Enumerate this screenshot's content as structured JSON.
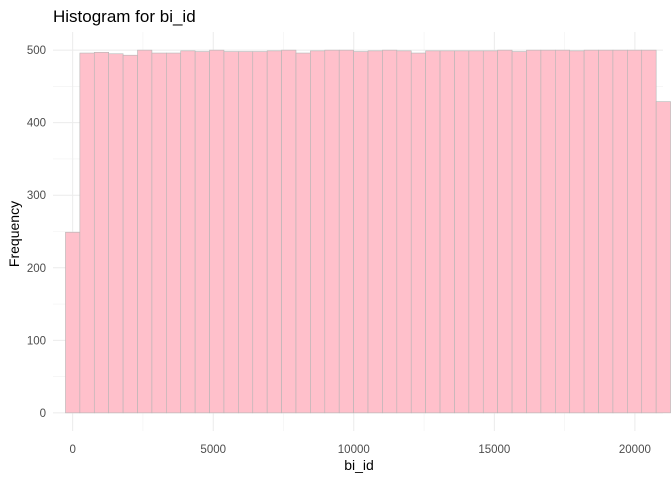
{
  "chart_data": {
    "type": "bar",
    "title": "Histogram for bi_id",
    "xlabel": "bi_id",
    "ylabel": "Frequency",
    "xlim": [
      -700,
      21000
    ],
    "ylim": [
      -25,
      525
    ],
    "x_ticks": [
      0,
      5000,
      10000,
      15000,
      20000
    ],
    "x_tick_labels": [
      "0",
      "5000",
      "10000",
      "15000",
      "20000"
    ],
    "y_ticks": [
      0,
      100,
      200,
      300,
      400,
      500
    ],
    "y_tick_labels": [
      "0",
      "100",
      "200",
      "300",
      "400",
      "500"
    ],
    "bin_width": 512.5,
    "bin_start": -256.25,
    "grid": true,
    "bar_color": "#ffc0cb",
    "bar_outline": "#b5b5b5",
    "counts": [
      249,
      496,
      497,
      495,
      493,
      500,
      496,
      496,
      499,
      498,
      500,
      498,
      498,
      498,
      499,
      500,
      496,
      499,
      500,
      500,
      498,
      499,
      500,
      499,
      496,
      499,
      499,
      499,
      499,
      499,
      500,
      498,
      500,
      500,
      500,
      499,
      500,
      500,
      500,
      500,
      500,
      429
    ]
  }
}
